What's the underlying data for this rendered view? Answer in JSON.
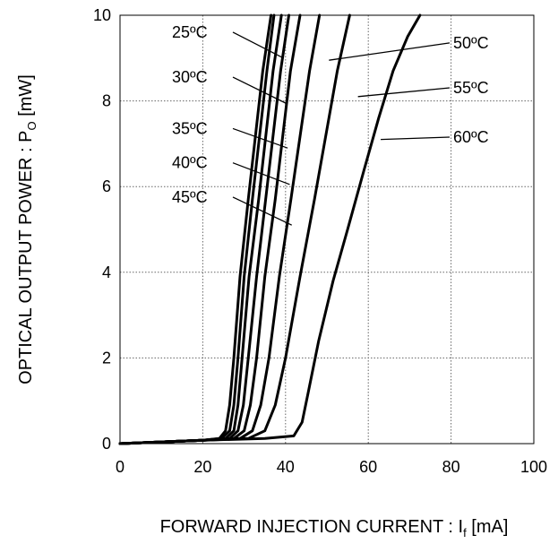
{
  "chart_data": {
    "type": "line",
    "title": "",
    "xlabel": "FORWARD INJECTION CURRENT : I",
    "xlabel_sub": "f",
    "xlabel_unit": " [mA]",
    "ylabel": "OPTICAL OUTPUT POWER : P",
    "ylabel_sub": "O",
    "ylabel_unit": " [mW]",
    "xlim": [
      0,
      100
    ],
    "ylim": [
      0,
      10
    ],
    "xticks": [
      0,
      20,
      40,
      60,
      80,
      100
    ],
    "yticks": [
      0,
      2,
      4,
      6,
      8,
      10
    ],
    "grid": "dotted",
    "series": [
      {
        "name": "25ºC",
        "label_side": "left",
        "label_y": 9.5,
        "pointer_at": [
          39.5,
          9.0
        ],
        "x": [
          0,
          10,
          20,
          24,
          25.5,
          26.5,
          27.5,
          29,
          31,
          34.5,
          36.5
        ],
        "y": [
          0,
          0.04,
          0.08,
          0.12,
          0.3,
          0.9,
          2.0,
          3.9,
          5.7,
          8.7,
          10
        ]
      },
      {
        "name": "30ºC",
        "label_side": "left",
        "label_y": 8.45,
        "pointer_at": [
          40.0,
          7.95
        ],
        "x": [
          0,
          10,
          20,
          24.5,
          26.5,
          27.5,
          28.5,
          30,
          32,
          35.5,
          37.2
        ],
        "y": [
          0,
          0.04,
          0.08,
          0.12,
          0.3,
          0.9,
          2.0,
          3.9,
          5.7,
          8.7,
          10
        ]
      },
      {
        "name": "35ºC",
        "label_side": "left",
        "label_y": 7.25,
        "pointer_at": [
          40.5,
          6.9
        ],
        "x": [
          0,
          10,
          20,
          25.5,
          27.5,
          28.5,
          29.5,
          31.2,
          33.5,
          37,
          39
        ],
        "y": [
          0,
          0.04,
          0.08,
          0.12,
          0.3,
          0.9,
          2.0,
          3.9,
          5.7,
          8.7,
          10
        ]
      },
      {
        "name": "40ºC",
        "label_side": "left",
        "label_y": 6.45,
        "pointer_at": [
          41.0,
          6.05
        ],
        "x": [
          0,
          10,
          20,
          26.5,
          28.5,
          29.8,
          31,
          33,
          35.2,
          38.8,
          40.8
        ],
        "y": [
          0,
          0.04,
          0.08,
          0.12,
          0.3,
          0.9,
          2.0,
          3.9,
          5.7,
          8.7,
          10
        ]
      },
      {
        "name": "45ºC",
        "label_side": "left",
        "label_y": 5.65,
        "pointer_at": [
          41.5,
          5.1
        ],
        "x": [
          0,
          10,
          20,
          27.5,
          30,
          31.5,
          33,
          35,
          37.5,
          41.2,
          43.5
        ],
        "y": [
          0,
          0.04,
          0.08,
          0.12,
          0.3,
          0.9,
          2.0,
          3.9,
          5.7,
          8.7,
          10
        ]
      },
      {
        "name": "50ºC",
        "label_side": "right",
        "label_y": 9.25,
        "pointer_at": [
          50.5,
          8.95
        ],
        "x": [
          0,
          10,
          20,
          29,
          32,
          34,
          36,
          38.5,
          41.3,
          45.8,
          48.2
        ],
        "y": [
          0,
          0.04,
          0.08,
          0.12,
          0.3,
          0.9,
          2.0,
          3.9,
          5.7,
          8.7,
          10
        ]
      },
      {
        "name": "55ºC",
        "label_side": "right",
        "label_y": 8.2,
        "pointer_at": [
          57.5,
          8.1
        ],
        "x": [
          0,
          10,
          20,
          31,
          35,
          37.5,
          40,
          43.5,
          47,
          52.5,
          55.5
        ],
        "y": [
          0,
          0.04,
          0.08,
          0.12,
          0.3,
          0.9,
          2.0,
          3.9,
          5.7,
          8.7,
          10
        ]
      },
      {
        "name": "60ºC",
        "label_side": "right",
        "label_y": 7.05,
        "pointer_at": [
          63.0,
          7.1
        ],
        "x": [
          0,
          10,
          20,
          35,
          42,
          44,
          45.5,
          48,
          51.5,
          55,
          59,
          62.5,
          66,
          69.5,
          72.5
        ],
        "y": [
          0,
          0.04,
          0.08,
          0.12,
          0.18,
          0.5,
          1.2,
          2.4,
          3.8,
          5.0,
          6.4,
          7.6,
          8.7,
          9.5,
          10
        ]
      }
    ]
  }
}
